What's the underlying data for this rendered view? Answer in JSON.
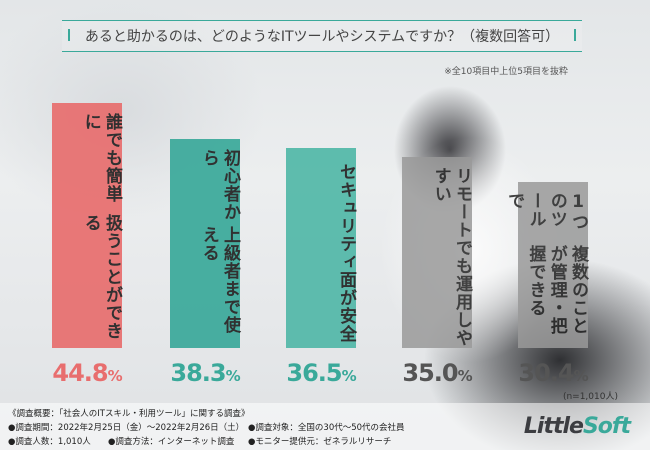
{
  "title": "あると助かるのは、どのようなITツールやシステムですか？（複数回答可）",
  "note": "※全10項目中上位5項目を抜粋",
  "sample_note": "(n=1,010人)",
  "chart_data": {
    "type": "bar",
    "categories": [
      "誰でも簡単に扱うことができる",
      "初心者から上級者まで使える",
      "セキュリティ面が安全",
      "リモートでも運用しやすい",
      "1つのツールで複数のことが管理・把握できる"
    ],
    "label_lines": [
      [
        "誰でも簡単に",
        "扱うことができる"
      ],
      [
        "初心者から",
        "上級者まで使える"
      ],
      [
        "セキュリティ面が安全"
      ],
      [
        "リモートでも運用しやすい"
      ],
      [
        "1つのツールで",
        "複数のことが管理・把握できる"
      ]
    ],
    "values": [
      44.8,
      38.3,
      36.5,
      35.0,
      30.4
    ],
    "value_labels": [
      {
        "num": "44.8",
        "unit": "%"
      },
      {
        "num": "38.3",
        "unit": "%"
      },
      {
        "num": "36.5",
        "unit": "%"
      },
      {
        "num": "35.0",
        "unit": "%"
      },
      {
        "num": "30.4",
        "unit": "%"
      }
    ],
    "ylim": [
      0,
      44.8
    ],
    "colors": [
      "#e86e6e",
      "#3aa99a",
      "#52b8a8",
      "#9a9a9a",
      "#9a9a9a"
    ],
    "value_colors": [
      "#e86e6e",
      "#3aa99a",
      "#3aa99a",
      "#555555",
      "#555555"
    ]
  },
  "footer": {
    "line1": "《調査概要：「社会人のITスキル・利用ツール」に関する調査》",
    "period": "●調査期間：2022年2月25日（金）～2022年2月26日（土）",
    "count": "●調査人数：1,010人",
    "method": "●調査方法：インターネット調査",
    "target": "●調査対象：全国の30代～50代の会社員",
    "provider": "●モニター提供元：ゼネラルリサーチ"
  },
  "logo": {
    "part1": "Little",
    "part2": "Soft"
  }
}
